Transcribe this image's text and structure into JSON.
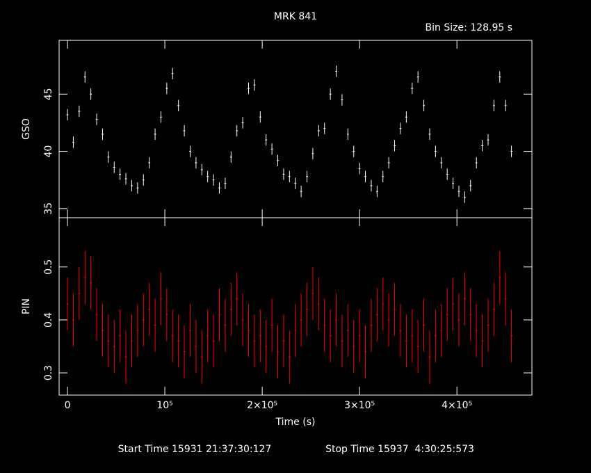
{
  "chart_data": [
    {
      "type": "errorbar",
      "title": "MRK 841",
      "subtitle": "Bin Size: 128.95 s",
      "ylabel": "GSO",
      "color": "#ffffff",
      "x": [
        0,
        6000,
        12000,
        18000,
        24000,
        30000,
        36000,
        42000,
        48000,
        54000,
        60000,
        66000,
        72000,
        78000,
        84000,
        90000,
        96000,
        102000,
        108000,
        114000,
        120000,
        126000,
        132000,
        138000,
        144000,
        150000,
        156000,
        162000,
        168000,
        174000,
        180000,
        186000,
        192000,
        198000,
        204000,
        210000,
        216000,
        222000,
        228000,
        234000,
        240000,
        246000,
        252000,
        258000,
        264000,
        270000,
        276000,
        282000,
        288000,
        294000,
        300000,
        306000,
        312000,
        318000,
        324000,
        330000,
        336000,
        342000,
        348000,
        354000,
        360000,
        366000,
        372000,
        378000,
        384000,
        390000,
        396000,
        402000,
        408000,
        414000,
        420000,
        426000,
        432000,
        438000,
        444000,
        450000,
        456000
      ],
      "values": [
        43.2,
        40.8,
        43.5,
        46.5,
        45.0,
        42.8,
        41.5,
        39.5,
        38.6,
        38.0,
        37.6,
        37.0,
        36.8,
        37.5,
        39.0,
        41.5,
        43.0,
        45.5,
        46.8,
        44.0,
        41.8,
        40.0,
        39.0,
        38.4,
        37.8,
        37.5,
        36.8,
        37.2,
        39.5,
        41.8,
        42.5,
        45.5,
        45.8,
        43.0,
        41.0,
        40.2,
        39.2,
        38.0,
        37.8,
        37.2,
        36.5,
        37.8,
        39.8,
        41.8,
        42.0,
        45.0,
        47.0,
        44.5,
        41.5,
        40.0,
        38.5,
        37.8,
        37.0,
        36.5,
        37.8,
        39.0,
        40.5,
        42.0,
        43.0,
        45.5,
        46.5,
        44.0,
        41.5,
        40.0,
        39.0,
        38.0,
        37.2,
        36.5,
        36.0,
        37.0,
        39.0,
        40.5,
        41.0,
        44.0,
        46.5,
        44.0,
        40.0
      ],
      "errors": [
        0.5,
        0.5,
        0.5,
        0.5,
        0.5,
        0.5,
        0.5,
        0.5,
        0.5,
        0.5,
        0.5,
        0.5,
        0.5,
        0.5,
        0.5,
        0.5,
        0.5,
        0.5,
        0.5,
        0.5,
        0.5,
        0.5,
        0.5,
        0.5,
        0.5,
        0.5,
        0.5,
        0.5,
        0.5,
        0.5,
        0.5,
        0.5,
        0.5,
        0.5,
        0.5,
        0.5,
        0.5,
        0.5,
        0.5,
        0.5,
        0.5,
        0.5,
        0.5,
        0.5,
        0.5,
        0.5,
        0.5,
        0.5,
        0.5,
        0.5,
        0.5,
        0.5,
        0.5,
        0.5,
        0.5,
        0.5,
        0.5,
        0.5,
        0.5,
        0.5,
        0.5,
        0.5,
        0.5,
        0.5,
        0.5,
        0.5,
        0.5,
        0.5,
        0.5,
        0.5,
        0.5,
        0.5,
        0.5,
        0.5,
        0.5,
        0.5,
        0.5
      ],
      "xlim": [
        -8600,
        477000
      ],
      "ylim": [
        34.2,
        49.7
      ],
      "yticks": [
        35,
        40,
        45
      ],
      "xticks": [
        0,
        100000,
        200000,
        300000,
        400000
      ]
    },
    {
      "type": "errorbar",
      "ylabel": "PIN",
      "xlabel": "Time (s)",
      "color": "#ff0000",
      "x": [
        0,
        6000,
        12000,
        18000,
        24000,
        30000,
        36000,
        42000,
        48000,
        54000,
        60000,
        66000,
        72000,
        78000,
        84000,
        90000,
        96000,
        102000,
        108000,
        114000,
        120000,
        126000,
        132000,
        138000,
        144000,
        150000,
        156000,
        162000,
        168000,
        174000,
        180000,
        186000,
        192000,
        198000,
        204000,
        210000,
        216000,
        222000,
        228000,
        234000,
        240000,
        246000,
        252000,
        258000,
        264000,
        270000,
        276000,
        282000,
        288000,
        294000,
        300000,
        306000,
        312000,
        318000,
        324000,
        330000,
        336000,
        342000,
        348000,
        354000,
        360000,
        366000,
        372000,
        378000,
        384000,
        390000,
        396000,
        402000,
        408000,
        414000,
        420000,
        426000,
        432000,
        438000,
        444000,
        450000,
        456000
      ],
      "values": [
        0.43,
        0.4,
        0.45,
        0.48,
        0.47,
        0.41,
        0.38,
        0.36,
        0.35,
        0.37,
        0.33,
        0.36,
        0.38,
        0.4,
        0.42,
        0.39,
        0.44,
        0.41,
        0.37,
        0.36,
        0.34,
        0.38,
        0.35,
        0.33,
        0.37,
        0.36,
        0.41,
        0.39,
        0.42,
        0.44,
        0.4,
        0.38,
        0.36,
        0.37,
        0.35,
        0.39,
        0.34,
        0.36,
        0.33,
        0.38,
        0.4,
        0.42,
        0.45,
        0.43,
        0.39,
        0.37,
        0.4,
        0.36,
        0.38,
        0.35,
        0.37,
        0.34,
        0.39,
        0.41,
        0.43,
        0.4,
        0.42,
        0.38,
        0.36,
        0.37,
        0.35,
        0.39,
        0.33,
        0.37,
        0.38,
        0.41,
        0.43,
        0.4,
        0.44,
        0.41,
        0.38,
        0.36,
        0.39,
        0.42,
        0.48,
        0.44,
        0.37
      ],
      "errors": [
        0.05,
        0.05,
        0.05,
        0.05,
        0.05,
        0.05,
        0.05,
        0.05,
        0.05,
        0.05,
        0.05,
        0.05,
        0.05,
        0.05,
        0.05,
        0.05,
        0.05,
        0.05,
        0.05,
        0.05,
        0.05,
        0.05,
        0.05,
        0.05,
        0.05,
        0.05,
        0.05,
        0.05,
        0.05,
        0.05,
        0.05,
        0.05,
        0.05,
        0.05,
        0.05,
        0.05,
        0.05,
        0.05,
        0.05,
        0.05,
        0.05,
        0.05,
        0.05,
        0.05,
        0.05,
        0.05,
        0.05,
        0.05,
        0.05,
        0.05,
        0.05,
        0.05,
        0.05,
        0.05,
        0.05,
        0.05,
        0.05,
        0.05,
        0.05,
        0.05,
        0.05,
        0.05,
        0.05,
        0.05,
        0.05,
        0.05,
        0.05,
        0.05,
        0.05,
        0.05,
        0.05,
        0.05,
        0.05,
        0.05,
        0.05,
        0.05,
        0.05
      ],
      "xlim": [
        -8600,
        477000
      ],
      "ylim": [
        0.258,
        0.593
      ],
      "yticks": [
        0.3,
        0.4,
        0.5
      ],
      "xticks": [
        0,
        {
          "value": 100000,
          "label": "10⁵"
        },
        {
          "value": 200000,
          "label": "2×10⁵"
        },
        {
          "value": 300000,
          "label": "3×10⁵"
        },
        {
          "value": 400000,
          "label": "4×10⁵"
        }
      ]
    }
  ],
  "footer": {
    "start": "Start Time 15931 21:37:30:127",
    "stop": "Stop Time 15937  4:30:25:573"
  }
}
